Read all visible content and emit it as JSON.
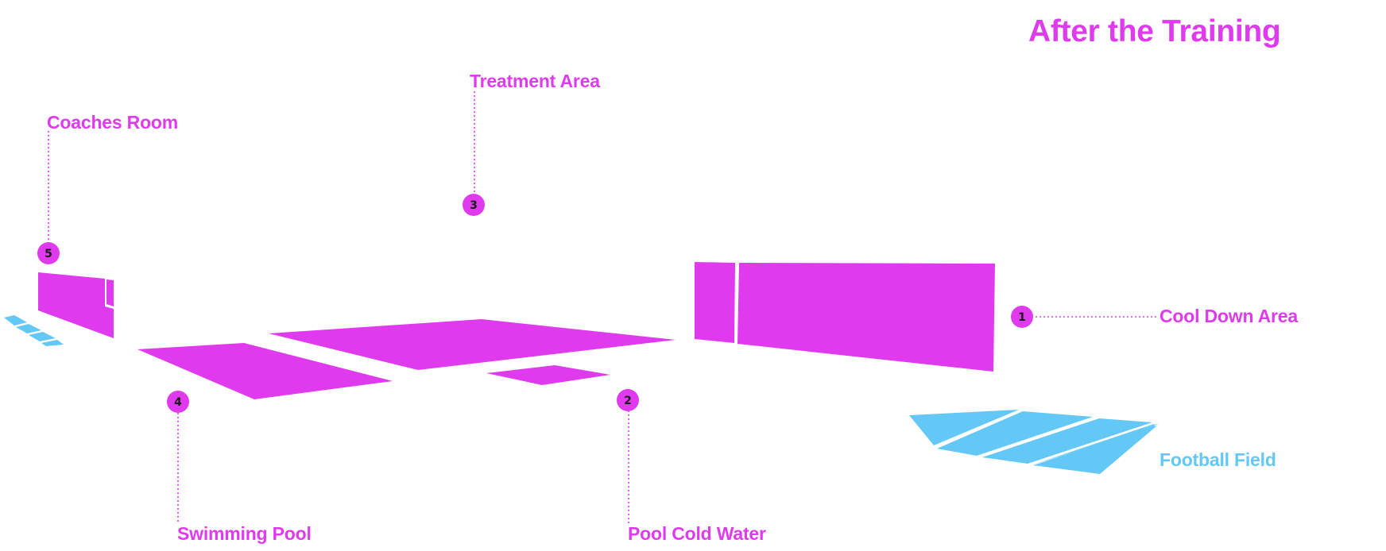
{
  "title": "After the Training",
  "colors": {
    "accent": "#e03aee",
    "field": "#63c8f6",
    "marker_text": "#1a1a1a"
  },
  "areas": [
    {
      "number": "1",
      "label": "Cool Down Area"
    },
    {
      "number": "2",
      "label": "Pool Cold Water"
    },
    {
      "number": "3",
      "label": "Treatment Area"
    },
    {
      "number": "4",
      "label": "Swimming Pool"
    },
    {
      "number": "5",
      "label": "Coaches Room"
    }
  ],
  "field_label": "Football Field"
}
